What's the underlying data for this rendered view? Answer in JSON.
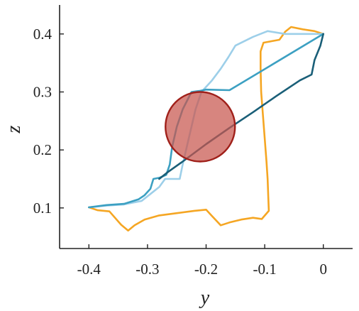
{
  "chart_data": {
    "type": "line",
    "xlabel": "y",
    "ylabel": "z",
    "xlim": [
      -0.45,
      0.05
    ],
    "ylim": [
      0.03,
      0.45
    ],
    "x_ticks": [
      -0.4,
      -0.3,
      -0.2,
      -0.1,
      0
    ],
    "x_tick_labels": [
      "-0.4",
      "-0.3",
      "-0.2",
      "-0.1",
      "0"
    ],
    "y_ticks": [
      0.1,
      0.2,
      0.3,
      0.4
    ],
    "y_tick_labels": [
      "0.1",
      "0.2",
      "0.3",
      "0.4"
    ],
    "grid": false,
    "series": [
      {
        "color": "#f5a623",
        "points": [
          [
            -0.4,
            0.101
          ],
          [
            -0.385,
            0.096
          ],
          [
            -0.365,
            0.094
          ],
          [
            -0.345,
            0.071
          ],
          [
            -0.333,
            0.061
          ],
          [
            -0.322,
            0.07
          ],
          [
            -0.305,
            0.08
          ],
          [
            -0.28,
            0.087
          ],
          [
            -0.25,
            0.091
          ],
          [
            -0.22,
            0.095
          ],
          [
            -0.2,
            0.097
          ],
          [
            -0.19,
            0.086
          ],
          [
            -0.175,
            0.07
          ],
          [
            -0.16,
            0.075
          ],
          [
            -0.14,
            0.08
          ],
          [
            -0.12,
            0.083
          ],
          [
            -0.105,
            0.081
          ],
          [
            -0.093,
            0.095
          ],
          [
            -0.094,
            0.12
          ],
          [
            -0.095,
            0.15
          ],
          [
            -0.097,
            0.18
          ],
          [
            -0.1,
            0.22
          ],
          [
            -0.103,
            0.26
          ],
          [
            -0.106,
            0.3
          ],
          [
            -0.107,
            0.34
          ],
          [
            -0.107,
            0.37
          ],
          [
            -0.102,
            0.385
          ],
          [
            -0.075,
            0.39
          ],
          [
            -0.065,
            0.404
          ],
          [
            -0.055,
            0.412
          ],
          [
            -0.035,
            0.408
          ],
          [
            -0.015,
            0.405
          ],
          [
            0,
            0.4
          ]
        ]
      },
      {
        "color": "#9dcfe9",
        "points": [
          [
            -0.4,
            0.101
          ],
          [
            -0.37,
            0.104
          ],
          [
            -0.34,
            0.106
          ],
          [
            -0.31,
            0.112
          ],
          [
            -0.295,
            0.124
          ],
          [
            -0.28,
            0.136
          ],
          [
            -0.27,
            0.15
          ],
          [
            -0.245,
            0.15
          ],
          [
            -0.24,
            0.175
          ],
          [
            -0.233,
            0.205
          ],
          [
            -0.225,
            0.24
          ],
          [
            -0.218,
            0.27
          ],
          [
            -0.208,
            0.3
          ],
          [
            -0.19,
            0.32
          ],
          [
            -0.175,
            0.34
          ],
          [
            -0.162,
            0.36
          ],
          [
            -0.15,
            0.38
          ],
          [
            -0.12,
            0.395
          ],
          [
            -0.095,
            0.405
          ],
          [
            -0.065,
            0.4
          ],
          [
            -0.03,
            0.4
          ],
          [
            0,
            0.4
          ]
        ]
      },
      {
        "color": "#3ca0c2",
        "points": [
          [
            -0.4,
            0.101
          ],
          [
            -0.37,
            0.105
          ],
          [
            -0.34,
            0.107
          ],
          [
            -0.315,
            0.115
          ],
          [
            -0.305,
            0.122
          ],
          [
            -0.295,
            0.133
          ],
          [
            -0.29,
            0.15
          ],
          [
            -0.28,
            0.152
          ],
          [
            -0.268,
            0.157
          ],
          [
            -0.262,
            0.175
          ],
          [
            -0.258,
            0.205
          ],
          [
            -0.25,
            0.24
          ],
          [
            -0.24,
            0.27
          ],
          [
            -0.225,
            0.3
          ],
          [
            -0.21,
            0.302
          ],
          [
            -0.2,
            0.304
          ],
          [
            -0.16,
            0.303
          ],
          [
            0,
            0.4
          ]
        ]
      },
      {
        "color": "#1a5f78",
        "points": [
          [
            -0.28,
            0.15
          ],
          [
            -0.265,
            0.162
          ],
          [
            -0.24,
            0.18
          ],
          [
            -0.2,
            0.21
          ],
          [
            -0.16,
            0.238
          ],
          [
            -0.12,
            0.265
          ],
          [
            -0.08,
            0.293
          ],
          [
            -0.04,
            0.32
          ],
          [
            -0.02,
            0.33
          ],
          [
            -0.015,
            0.355
          ],
          [
            -0.005,
            0.38
          ],
          [
            0,
            0.4
          ]
        ]
      }
    ],
    "circle": {
      "center": [
        -0.21,
        0.24
      ],
      "radius_z": 0.06,
      "fill": "#c8564e",
      "stroke": "#a0201a"
    }
  }
}
